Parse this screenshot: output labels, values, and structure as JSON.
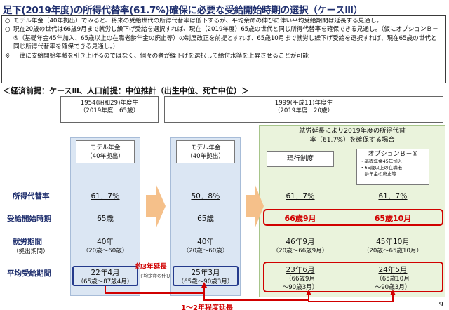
{
  "title": "足下(2019年度)の所得代替率(61.7%)確保に必要な受給開始時期の選択（ケースⅢ）",
  "notes": [
    {
      "marker": "○",
      "text": "モデル年金（40年拠出）でみると、将来の受給世代の所得代替率は低下するが、平均余命の伸びに伴い平均受給期間は延長する見通し。"
    },
    {
      "marker": "○",
      "text": "現在20歳の世代は66歳9月まで就労し繰下げ受給を選択すれば、現在（2019年度）65歳の世代と同じ所得代替率を確保できる見通し。（仮にオプションＢ－⑤（基礎年金45年加入、65歳以上の在職老齢年金の廃止等）の制度改正を前提とすれば、65歳10月まで就労し繰下げ受給を選択すれば、現在65歳の世代と同じ所得代替率を確保できる見通し。）"
    },
    {
      "marker": "※",
      "text": "一律に支給開始年齢を引き上げるのではなく、個々の者が繰下げを選択して給付水準を上昇させることが可能"
    }
  ],
  "premise": "＜経済前提：ケースⅢ、人口前提：中位推計（出生中位、死亡中位）＞",
  "cohorts": {
    "left": {
      "line1": "1954(昭和29)年度生",
      "line2": "（2019年度　65歳）"
    },
    "right": {
      "line1": "1999(平成11)年度生",
      "line2": "（2019年度　20歳）"
    }
  },
  "row_labels": {
    "replacement": "所得代替率",
    "start": "受給開始時期",
    "work": "就労期間",
    "work_sub": "（拠出期間）",
    "receive": "平均受給期間"
  },
  "columns": {
    "c1": {
      "label1": "モデル年金",
      "label2": "（40年拠出）",
      "replacement": "61．7％",
      "start": "65歳",
      "work": "40年",
      "work_sub": "（20歳～60歳）",
      "receive": "22年4月",
      "receive_sub": "（65歳～87歳4月）"
    },
    "c2": {
      "label1": "モデル年金",
      "label2": "（40年拠出）",
      "replacement": "50．8％",
      "start": "65歳",
      "work": "40年",
      "work_sub": "（20歳～60歳）",
      "receive": "25年3月",
      "receive_sub": "（65歳～90歳3月）"
    },
    "c3": {
      "header": "現行制度",
      "replacement": "61．7％",
      "start": "66歳9月",
      "work": "46年9月",
      "work_sub": "（20歳～66歳9月）",
      "receive": "23年6月",
      "receive_sub1": "（66歳9月",
      "receive_sub2": "～90歳3月）"
    },
    "c4": {
      "header": "オプションＢ－⑤",
      "header_items": [
        "・基礎年金45年加入",
        "・65歳以上の在職老",
        "　齢年金の廃止等"
      ],
      "replacement": "61．7％",
      "start": "65歳10月",
      "work": "45年10月",
      "work_sub": "（20歳～65歳10月）",
      "receive": "24年5月",
      "receive_sub1": "（65歳10月",
      "receive_sub2": "～90歳3月）"
    }
  },
  "green_header": {
    "line1": "就労延長により2019年度の所得代替",
    "line2": "率（61.7%）を確保する場合"
  },
  "extension": {
    "label": "約3年延長",
    "sub": "平均余命の伸び"
  },
  "bottom_extension": "1～2年程度延長",
  "page_number": "9",
  "colors": {
    "title": "#1f2f6e",
    "red": "#d10000",
    "blue_column": "#dbe6f3",
    "green_panel": "#eaf3dc",
    "arrow": "#f5c08a"
  },
  "icons": {
    "arrow_right": "orange-right-arrow",
    "bracket_up": "red-bracket-arrow"
  }
}
